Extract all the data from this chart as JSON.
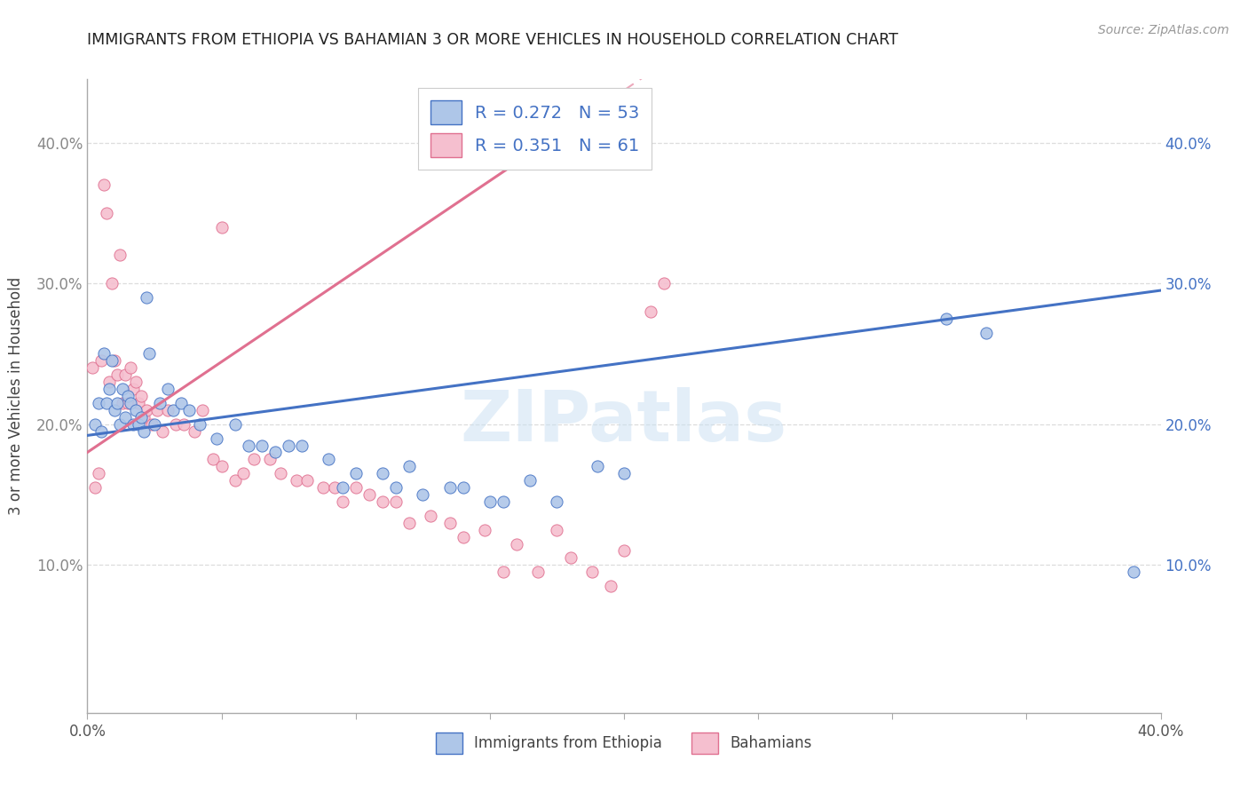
{
  "title": "IMMIGRANTS FROM ETHIOPIA VS BAHAMIAN 3 OR MORE VEHICLES IN HOUSEHOLD CORRELATION CHART",
  "source": "Source: ZipAtlas.com",
  "ylabel": "3 or more Vehicles in Household",
  "legend_label_blue": "Immigrants from Ethiopia",
  "legend_label_pink": "Bahamians",
  "r_blue": 0.272,
  "n_blue": 53,
  "r_pink": 0.351,
  "n_pink": 61,
  "blue_color": "#aec6e8",
  "pink_color": "#f5bfcf",
  "blue_line_color": "#4472c4",
  "pink_line_color": "#e07090",
  "blue_edge_color": "#4472c4",
  "pink_edge_color": "#e07090",
  "watermark": "ZIPatlas",
  "xlim": [
    0.0,
    0.4
  ],
  "ylim": [
    -0.005,
    0.445
  ],
  "ytick_values": [
    0.1,
    0.2,
    0.3,
    0.4
  ],
  "blue_scatter_x": [
    0.003,
    0.004,
    0.005,
    0.006,
    0.007,
    0.008,
    0.009,
    0.01,
    0.011,
    0.012,
    0.013,
    0.014,
    0.015,
    0.016,
    0.017,
    0.018,
    0.019,
    0.02,
    0.021,
    0.022,
    0.023,
    0.025,
    0.027,
    0.03,
    0.032,
    0.035,
    0.038,
    0.042,
    0.048,
    0.055,
    0.06,
    0.065,
    0.07,
    0.075,
    0.08,
    0.09,
    0.095,
    0.1,
    0.11,
    0.115,
    0.12,
    0.125,
    0.135,
    0.14,
    0.15,
    0.155,
    0.165,
    0.175,
    0.19,
    0.2,
    0.32,
    0.335,
    0.39
  ],
  "blue_scatter_y": [
    0.2,
    0.215,
    0.195,
    0.25,
    0.215,
    0.225,
    0.245,
    0.21,
    0.215,
    0.2,
    0.225,
    0.205,
    0.22,
    0.215,
    0.2,
    0.21,
    0.2,
    0.205,
    0.195,
    0.29,
    0.25,
    0.2,
    0.215,
    0.225,
    0.21,
    0.215,
    0.21,
    0.2,
    0.19,
    0.2,
    0.185,
    0.185,
    0.18,
    0.185,
    0.185,
    0.175,
    0.155,
    0.165,
    0.165,
    0.155,
    0.17,
    0.15,
    0.155,
    0.155,
    0.145,
    0.145,
    0.16,
    0.145,
    0.17,
    0.165,
    0.275,
    0.265,
    0.095
  ],
  "pink_scatter_x": [
    0.002,
    0.003,
    0.004,
    0.005,
    0.006,
    0.007,
    0.008,
    0.009,
    0.01,
    0.011,
    0.012,
    0.013,
    0.014,
    0.015,
    0.016,
    0.017,
    0.018,
    0.019,
    0.02,
    0.021,
    0.022,
    0.024,
    0.026,
    0.028,
    0.03,
    0.033,
    0.036,
    0.04,
    0.043,
    0.047,
    0.05,
    0.055,
    0.058,
    0.062,
    0.068,
    0.072,
    0.078,
    0.082,
    0.088,
    0.092,
    0.095,
    0.1,
    0.105,
    0.11,
    0.115,
    0.12,
    0.128,
    0.135,
    0.14,
    0.148,
    0.155,
    0.16,
    0.168,
    0.175,
    0.18,
    0.188,
    0.195,
    0.2,
    0.21,
    0.215,
    0.05
  ],
  "pink_scatter_y": [
    0.24,
    0.155,
    0.165,
    0.245,
    0.37,
    0.35,
    0.23,
    0.3,
    0.245,
    0.235,
    0.32,
    0.215,
    0.235,
    0.215,
    0.24,
    0.225,
    0.23,
    0.215,
    0.22,
    0.205,
    0.21,
    0.2,
    0.21,
    0.195,
    0.21,
    0.2,
    0.2,
    0.195,
    0.21,
    0.175,
    0.17,
    0.16,
    0.165,
    0.175,
    0.175,
    0.165,
    0.16,
    0.16,
    0.155,
    0.155,
    0.145,
    0.155,
    0.15,
    0.145,
    0.145,
    0.13,
    0.135,
    0.13,
    0.12,
    0.125,
    0.095,
    0.115,
    0.095,
    0.125,
    0.105,
    0.095,
    0.085,
    0.11,
    0.28,
    0.3,
    0.34
  ],
  "blue_trend_x0": 0.0,
  "blue_trend_y0": 0.192,
  "blue_trend_x1": 0.4,
  "blue_trend_y1": 0.295,
  "pink_trend_x0": 0.0,
  "pink_trend_y0": 0.18,
  "pink_trend_x1": 0.175,
  "pink_trend_y1": 0.405
}
